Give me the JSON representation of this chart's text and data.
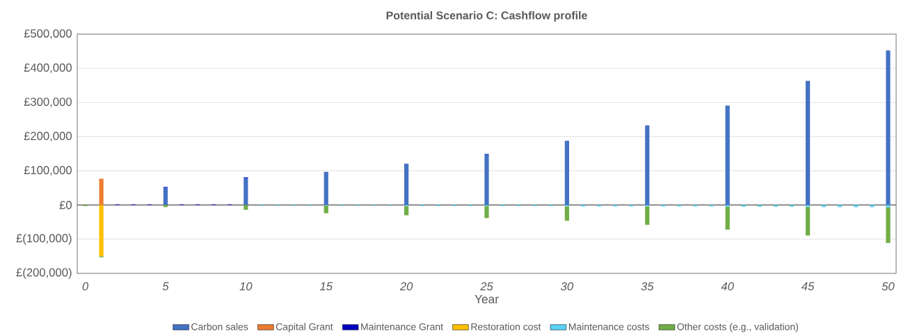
{
  "chart_data": {
    "type": "bar",
    "stacked": true,
    "title": "Potential Scenario C: Cashflow profile",
    "xlabel": "Year",
    "x": [
      0,
      1,
      2,
      3,
      4,
      5,
      6,
      7,
      8,
      9,
      10,
      11,
      12,
      13,
      14,
      15,
      16,
      17,
      18,
      19,
      20,
      21,
      22,
      23,
      24,
      25,
      26,
      27,
      28,
      29,
      30,
      31,
      32,
      33,
      34,
      35,
      36,
      37,
      38,
      39,
      40,
      41,
      42,
      43,
      44,
      45,
      46,
      47,
      48,
      49,
      50
    ],
    "xlim": [
      -0.5,
      50.5
    ],
    "xticks": [
      0,
      5,
      10,
      15,
      20,
      25,
      30,
      35,
      40,
      45,
      50
    ],
    "ylim": [
      -200000,
      500000
    ],
    "yticks": [
      {
        "value": -200000,
        "label": "£(200,000)"
      },
      {
        "value": -100000,
        "label": "£(100,000)"
      },
      {
        "value": 0,
        "label": "£0"
      },
      {
        "value": 100000,
        "label": "£100,000"
      },
      {
        "value": 200000,
        "label": "£200,000"
      },
      {
        "value": 300000,
        "label": "£300,000"
      },
      {
        "value": 400000,
        "label": "£400,000"
      },
      {
        "value": 500000,
        "label": "£500,000"
      }
    ],
    "grid": "y",
    "legend": "bottom",
    "series": [
      {
        "name": "Carbon sales",
        "color": "#4472c4",
        "values": [
          null,
          null,
          null,
          null,
          null,
          51000,
          null,
          null,
          null,
          null,
          79000,
          null,
          null,
          null,
          null,
          97000,
          null,
          null,
          null,
          null,
          121000,
          null,
          null,
          null,
          null,
          150000,
          null,
          null,
          null,
          null,
          188000,
          null,
          null,
          null,
          null,
          233000,
          null,
          null,
          null,
          null,
          291000,
          null,
          null,
          null,
          null,
          363000,
          null,
          null,
          null,
          null,
          452000
        ]
      },
      {
        "name": "Capital Grant",
        "color": "#ed7d31",
        "values": [
          null,
          77000,
          null,
          null,
          null,
          null,
          null,
          null,
          null,
          null,
          null,
          null,
          null,
          null,
          null,
          null,
          null,
          null,
          null,
          null,
          null,
          null,
          null,
          null,
          null,
          null,
          null,
          null,
          null,
          null,
          null,
          null,
          null,
          null,
          null,
          null,
          null,
          null,
          null,
          null,
          null,
          null,
          null,
          null,
          null,
          null,
          null,
          null,
          null,
          null,
          null
        ]
      },
      {
        "name": "Maintenance Grant",
        "color": "#0000c0",
        "values": [
          null,
          null,
          2000,
          2000,
          2000,
          2000,
          2000,
          2000,
          2000,
          2000,
          2000,
          null,
          null,
          null,
          null,
          null,
          null,
          null,
          null,
          null,
          null,
          null,
          null,
          null,
          null,
          null,
          null,
          null,
          null,
          null,
          null,
          null,
          null,
          null,
          null,
          null,
          null,
          null,
          null,
          null,
          null,
          null,
          null,
          null,
          null,
          null,
          null,
          null,
          null,
          null,
          null
        ]
      },
      {
        "name": "Restoration cost",
        "color": "#ffc000",
        "values": [
          null,
          -150000,
          null,
          null,
          null,
          null,
          null,
          null,
          null,
          null,
          null,
          null,
          null,
          null,
          null,
          null,
          null,
          null,
          null,
          null,
          null,
          null,
          null,
          null,
          null,
          null,
          null,
          null,
          null,
          null,
          null,
          null,
          null,
          null,
          null,
          null,
          null,
          null,
          null,
          null,
          null,
          null,
          null,
          null,
          null,
          null,
          null,
          null,
          null,
          null,
          null
        ]
      },
      {
        "name": "Maintenance costs",
        "color": "#5bd2f7",
        "values": [
          null,
          null,
          null,
          null,
          null,
          null,
          null,
          null,
          null,
          null,
          null,
          -2000,
          -2000,
          -2000,
          -2000,
          -2000,
          -2000,
          -2000,
          -2000,
          -2000,
          -3000,
          -3000,
          -3000,
          -3000,
          -3000,
          -3000,
          -3000,
          -3000,
          -3000,
          -3000,
          -4000,
          -4000,
          -4000,
          -4000,
          -4000,
          -4000,
          -4000,
          -4000,
          -4000,
          -4000,
          -5000,
          -5000,
          -5000,
          -5000,
          -5000,
          -6000,
          -6000,
          -6000,
          -6000,
          -6000,
          -7000
        ]
      },
      {
        "name": "Other costs (e.g., validation)",
        "color": "#70ad47",
        "values": [
          -3000,
          -3000,
          null,
          null,
          null,
          -6000,
          null,
          null,
          null,
          null,
          -14000,
          null,
          null,
          null,
          null,
          -22000,
          null,
          null,
          null,
          null,
          -27000,
          null,
          null,
          null,
          null,
          -35000,
          null,
          null,
          null,
          null,
          -42000,
          null,
          null,
          null,
          null,
          -54000,
          null,
          null,
          null,
          null,
          -67000,
          null,
          null,
          null,
          null,
          -83000,
          null,
          null,
          null,
          null,
          -104000
        ]
      }
    ]
  }
}
